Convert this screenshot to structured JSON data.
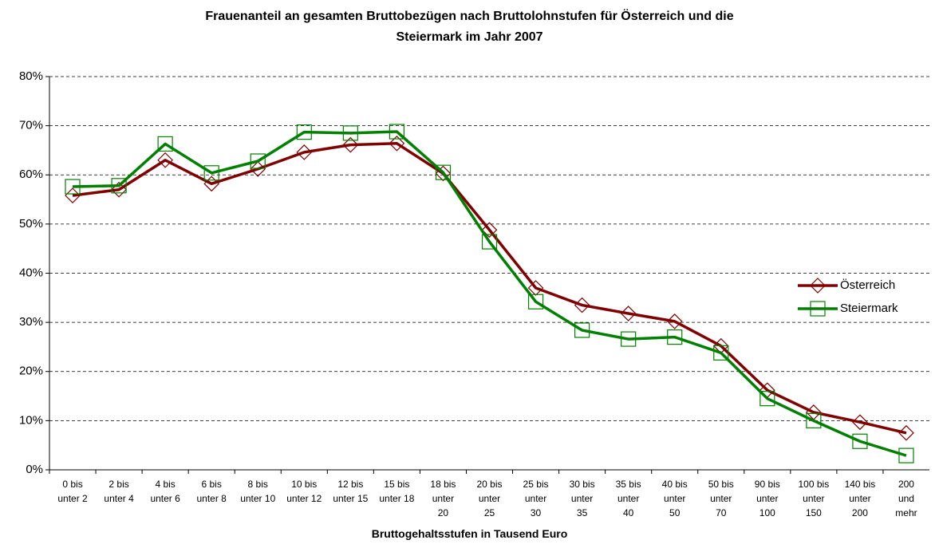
{
  "chart_data": {
    "type": "line",
    "title": "Frauenanteil an gesamten Bruttobezügen nach Bruttolohnstufen für Österreich und die\nSteiermark im Jahr 2007",
    "xlabel": "Bruttogehaltsstufen in Tausend Euro",
    "categories": [
      "0 bis\nunter 2",
      "2 bis\nunter 4",
      "4 bis\nunter 6",
      "6 bis\nunter 8",
      "8 bis\nunter 10",
      "10 bis\nunter 12",
      "12 bis\nunter 15",
      "15 bis\nunter 18",
      "18 bis\nunter\n20",
      "20 bis\nunter\n25",
      "25 bis\nunter\n30",
      "30 bis\nunter\n35",
      "35 bis\nunter\n40",
      "40 bis\nunter\n50",
      "50 bis\nunter\n70",
      "90 bis\nunter\n100",
      "100 bis\nunter\n150",
      "140 bis\nunter\n200",
      "200\nund\nmehr"
    ],
    "series": [
      {
        "name": "Österreich",
        "color": "#800000",
        "marker": "diamond",
        "values": [
          55.8,
          57.0,
          63.0,
          58.2,
          61.2,
          64.6,
          66.1,
          66.4,
          60.3,
          48.8,
          37.0,
          33.5,
          31.8,
          30.2,
          25.2,
          16.2,
          11.7,
          9.7,
          7.5
        ]
      },
      {
        "name": "Steiermark",
        "color": "#008000",
        "marker": "square",
        "values": [
          57.6,
          57.8,
          66.3,
          60.4,
          62.8,
          68.7,
          68.5,
          68.8,
          60.5,
          46.4,
          34.2,
          28.4,
          26.6,
          27.0,
          23.8,
          14.5,
          10.0,
          5.8,
          2.9
        ]
      }
    ],
    "ylim": [
      0,
      80
    ],
    "yticks": [
      {
        "value": 0,
        "label": "0%"
      },
      {
        "value": 10,
        "label": "10%"
      },
      {
        "value": 20,
        "label": "20%"
      },
      {
        "value": 30,
        "label": "30%"
      },
      {
        "value": 40,
        "label": "40%"
      },
      {
        "value": 50,
        "label": "50%"
      },
      {
        "value": 60,
        "label": "60%"
      },
      {
        "value": 70,
        "label": "70%"
      },
      {
        "value": 80,
        "label": "80%"
      }
    ],
    "grid": true,
    "legend": "right"
  }
}
